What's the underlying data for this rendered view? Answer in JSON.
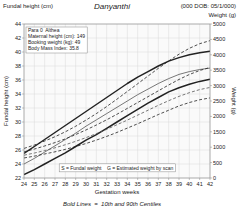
{
  "chart_data": {
    "type": "line",
    "title": "Danyanthi",
    "subtitle": "(000 DOB: 05/1/000)",
    "ylabel": "Fundal height (cm)",
    "y2label": "Weight (g)",
    "xlabel": "Gestation weeks",
    "info_box": [
      "Para 0  Althea",
      "Maternal height (cm): 149",
      "Booking weight (kg): 49",
      "Body Mass Index: 35.8"
    ],
    "legend_text": "S = Fundal weight    G = Estimated weight by scan",
    "footnote": "Bold Lines  =  10th and 90th Centiles",
    "x": [
      24,
      25,
      26,
      27,
      28,
      29,
      30,
      31,
      32,
      33,
      34,
      35,
      36,
      37,
      38,
      39,
      40,
      41,
      42
    ],
    "xlim": [
      24,
      42
    ],
    "xticks": [
      24,
      25,
      26,
      27,
      28,
      29,
      30,
      31,
      32,
      33,
      34,
      35,
      36,
      37,
      38,
      39,
      40,
      41,
      42
    ],
    "ylim": [
      22,
      44
    ],
    "yticks": [
      22,
      24,
      26,
      28,
      30,
      32,
      34,
      36,
      38,
      40,
      42,
      44
    ],
    "y2lim": [
      0,
      5000
    ],
    "y2ticks": [
      0,
      500,
      1000,
      1500,
      2000,
      2500,
      3000,
      3500,
      4000,
      4500,
      5000
    ],
    "grid": true,
    "series": [
      {
        "color": "#222222",
        "line_style": "bold",
        "values": [
          22.5,
          23.2,
          24.0,
          24.8,
          25.6,
          26.5,
          27.4,
          28.2,
          29.1,
          30.0,
          30.9,
          31.8,
          32.7,
          33.5,
          34.3,
          34.9,
          35.4,
          35.8,
          36.1
        ]
      },
      {
        "color": "#555555",
        "line_style": "solid",
        "values": [
          24.0,
          24.8,
          25.7,
          26.6,
          27.5,
          28.4,
          29.4,
          30.3,
          31.2,
          32.1,
          33.0,
          33.9,
          34.7,
          35.5,
          36.2,
          36.8,
          37.2,
          37.5,
          37.7
        ]
      },
      {
        "color": "#222222",
        "line_style": "bold",
        "values": [
          25.5,
          26.5,
          27.5,
          28.5,
          29.5,
          30.5,
          31.5,
          32.5,
          33.5,
          34.5,
          35.5,
          36.4,
          37.2,
          38.0,
          38.7,
          39.2,
          39.6,
          39.9,
          40.1
        ]
      },
      {
        "color": "#222222",
        "line_style": "dashed",
        "axis": "y2",
        "values": [
          650,
          710,
          780,
          850,
          930,
          1020,
          1120,
          1230,
          1350,
          1480,
          1620,
          1760,
          1910,
          2060,
          2200,
          2340,
          2450,
          2540,
          2600
        ]
      },
      {
        "color": "#555555",
        "line_style": "dashed",
        "axis": "y2",
        "values": [
          740,
          810,
          890,
          980,
          1080,
          1190,
          1310,
          1440,
          1580,
          1730,
          1880,
          2040,
          2200,
          2360,
          2510,
          2650,
          2770,
          2870,
          2940
        ]
      },
      {
        "color": "#222222",
        "line_style": "dashed",
        "axis": "y2",
        "values": [
          850,
          940,
          1040,
          1150,
          1270,
          1410,
          1560,
          1720,
          1890,
          2070,
          2260,
          2450,
          2640,
          2830,
          3020,
          3200,
          3360,
          3490,
          3590
        ]
      },
      {
        "color": "#222222",
        "line_style": "dashed",
        "axis": "y2",
        "values": [
          960,
          1070,
          1200,
          1340,
          1500,
          1680,
          1880,
          2090,
          2320,
          2560,
          2810,
          3060,
          3310,
          3560,
          3800,
          4020,
          4210,
          4360,
          4460
        ]
      }
    ]
  }
}
